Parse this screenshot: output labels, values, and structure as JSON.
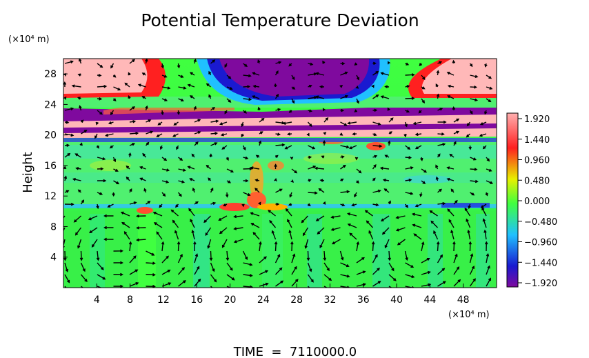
{
  "chart_data": {
    "type": "heatmap",
    "title": "Potential Temperature Deviation",
    "xlabel": "",
    "ylabel": "Height",
    "x_unit": "(×10⁴ m)",
    "y_unit": "(×10⁴ m)",
    "xlim": [
      0,
      52
    ],
    "ylim": [
      0,
      30
    ],
    "x_ticks": [
      4,
      8,
      12,
      16,
      20,
      24,
      28,
      32,
      36,
      40,
      44,
      48
    ],
    "y_ticks": [
      4,
      8,
      12,
      16,
      20,
      24,
      28
    ],
    "colorbar": {
      "ticks": [
        "1.920",
        "1.440",
        "0.960",
        "0.480",
        "0.000",
        "−0.480",
        "−0.960",
        "−1.440",
        "−1.920"
      ],
      "range": [
        -1.92,
        1.92
      ],
      "colors": [
        "#7f0a9e",
        "#1a1ad0",
        "#20c0ff",
        "#40ff40",
        "#e8f000",
        "#ff2020",
        "#ffb0b0"
      ]
    },
    "overlay": "velocity-vectors",
    "annotation": "TIME  =  7110000.0"
  }
}
